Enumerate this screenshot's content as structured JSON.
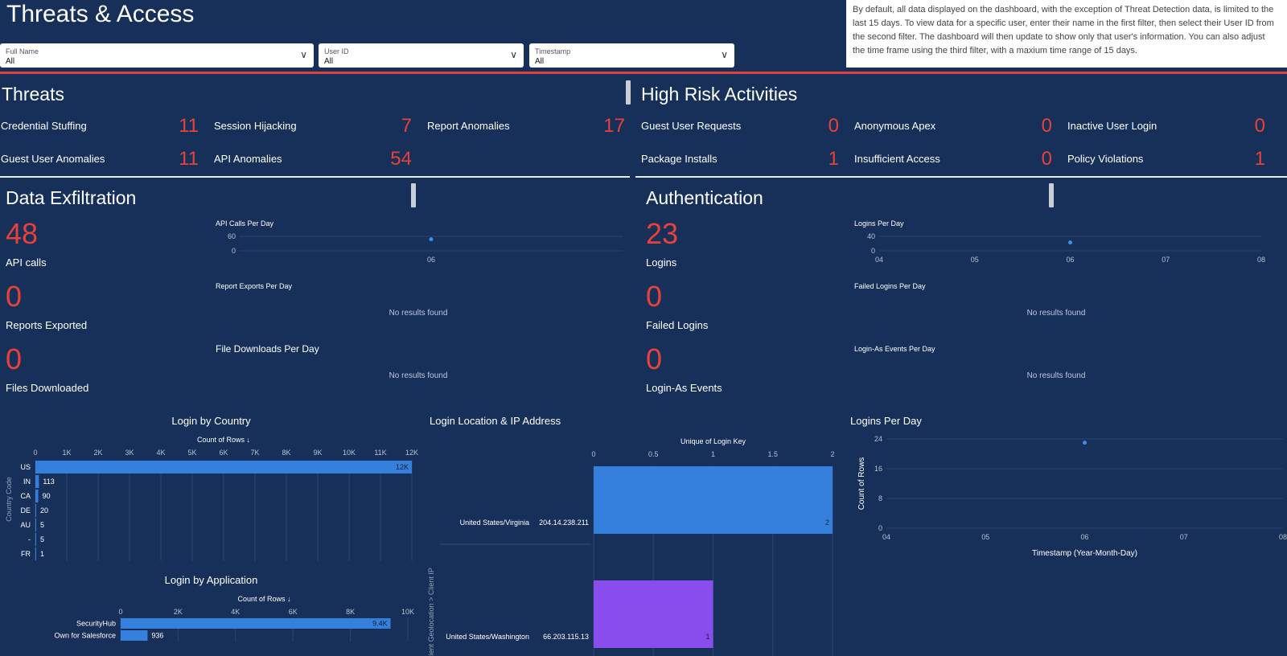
{
  "header": {
    "title": "Threats & Access",
    "info": "By default, all data displayed on the dashboard, with the exception of Threat Detection data, is limited to the last 15 days. To view data for a specific user, enter their name in the first filter, then select their User ID from the second filter. The dashboard will then update to show only that user's information. You can also adjust the time frame using the third filter, with a maxium time range of 15 days."
  },
  "filters": [
    {
      "label": "Full Name",
      "value": "All"
    },
    {
      "label": "User ID",
      "value": "All"
    },
    {
      "label": "Timestamp",
      "value": "All"
    }
  ],
  "threats": {
    "title": "Threats",
    "items": [
      {
        "label": "Credential Stuffing",
        "value": "11"
      },
      {
        "label": "Session Hijacking",
        "value": "7"
      },
      {
        "label": "Report Anomalies",
        "value": "17"
      },
      {
        "label": "Guest User Anomalies",
        "value": "11"
      },
      {
        "label": "API Anomalies",
        "value": "54"
      }
    ]
  },
  "high_risk": {
    "title": "High Risk Activities",
    "items": [
      {
        "label": "Guest User Requests",
        "value": "0"
      },
      {
        "label": "Anonymous Apex",
        "value": "0"
      },
      {
        "label": "Inactive User Login",
        "value": "0"
      },
      {
        "label": "Package Installs",
        "value": "1"
      },
      {
        "label": "Insufficient Access",
        "value": "0"
      },
      {
        "label": "Policy Violations",
        "value": "1"
      }
    ]
  },
  "exfil": {
    "title": "Data Exfiltration",
    "metrics": [
      {
        "value": "48",
        "label": "API calls"
      },
      {
        "value": "0",
        "label": "Reports Exported"
      },
      {
        "value": "0",
        "label": "Files Downloaded"
      }
    ],
    "charts": [
      {
        "title": "API Calls Per Day"
      },
      {
        "title": "Report Exports Per Day",
        "empty": "No results found"
      },
      {
        "title": "File Downloads Per Day",
        "empty": "No results found"
      }
    ]
  },
  "auth": {
    "title": "Authentication",
    "metrics": [
      {
        "value": "23",
        "label": "Logins"
      },
      {
        "value": "0",
        "label": "Failed Logins"
      },
      {
        "value": "0",
        "label": "Login-As Events"
      }
    ],
    "charts": [
      {
        "title": "Logins Per Day"
      },
      {
        "title": "Failed Logins Per Day",
        "empty": "No results found"
      },
      {
        "title": "Login-As Events Per Day",
        "empty": "No results found"
      }
    ]
  },
  "colors": {
    "background": "#163059",
    "accent_red": "#e8413a",
    "bar_blue": "#3580dd",
    "bar_purple": "#8a4ded"
  },
  "chart_data": [
    {
      "id": "api_calls_per_day",
      "type": "scatter",
      "title": "API Calls Per Day",
      "x": [
        "06"
      ],
      "y": [
        48
      ],
      "yticks": [
        0,
        60
      ],
      "ylim": [
        0,
        60
      ]
    },
    {
      "id": "logins_per_day_small",
      "type": "scatter",
      "title": "Logins Per Day",
      "xticks": [
        "04",
        "05",
        "06",
        "07",
        "08"
      ],
      "x": [
        "06"
      ],
      "y": [
        23
      ],
      "yticks": [
        0,
        40
      ],
      "ylim": [
        0,
        40
      ]
    },
    {
      "id": "login_by_country",
      "type": "bar",
      "orientation": "horizontal",
      "title": "Login by Country",
      "xlabel": "Count of Rows ↓",
      "ylabel": "Country Code",
      "categories": [
        "US",
        "IN",
        "CA",
        "DE",
        "AU",
        "-",
        "FR"
      ],
      "values": [
        12000,
        113,
        90,
        20,
        5,
        5,
        1
      ],
      "labels": [
        "12K",
        "113",
        "90",
        "20",
        "5",
        "5",
        "1"
      ],
      "xticks": [
        "0",
        "1K",
        "2K",
        "3K",
        "4K",
        "5K",
        "6K",
        "7K",
        "8K",
        "9K",
        "10K",
        "11K",
        "12K"
      ],
      "xlim": [
        0,
        12000
      ]
    },
    {
      "id": "login_by_application",
      "type": "bar",
      "orientation": "horizontal",
      "title": "Login by Application",
      "xlabel": "Count of Rows ↓",
      "categories": [
        "SecurityHub",
        "Own for Salesforce"
      ],
      "values": [
        9400,
        936
      ],
      "labels": [
        "9.4K",
        "936"
      ],
      "xticks": [
        "0",
        "2K",
        "4K",
        "6K",
        "8K",
        "10K"
      ],
      "xlim": [
        0,
        10000
      ]
    },
    {
      "id": "login_location_ip",
      "type": "bar",
      "orientation": "horizontal",
      "title": "Login Location & IP Address",
      "xlabel": "Unique of Login Key",
      "ylabel": "Client Geolocation > Client IP",
      "categories": [
        {
          "location": "United States/Virginia",
          "ip": "204.14.238.211"
        },
        {
          "location": "United States/Washington",
          "ip": "66.203.115.13"
        }
      ],
      "values": [
        2,
        1
      ],
      "labels": [
        "2",
        "1"
      ],
      "xticks": [
        "0",
        "0.5",
        "1",
        "1.5",
        "2"
      ],
      "xlim": [
        0,
        2
      ]
    },
    {
      "id": "logins_per_day",
      "type": "scatter",
      "title": "Logins Per Day",
      "xlabel": "Timestamp (Year-Month-Day)",
      "ylabel": "Count of Rows",
      "xticks": [
        "04",
        "05",
        "06",
        "07",
        "08"
      ],
      "x": [
        "06"
      ],
      "y": [
        23
      ],
      "yticks": [
        0,
        8,
        16,
        24
      ],
      "ylim": [
        0,
        24
      ]
    }
  ]
}
